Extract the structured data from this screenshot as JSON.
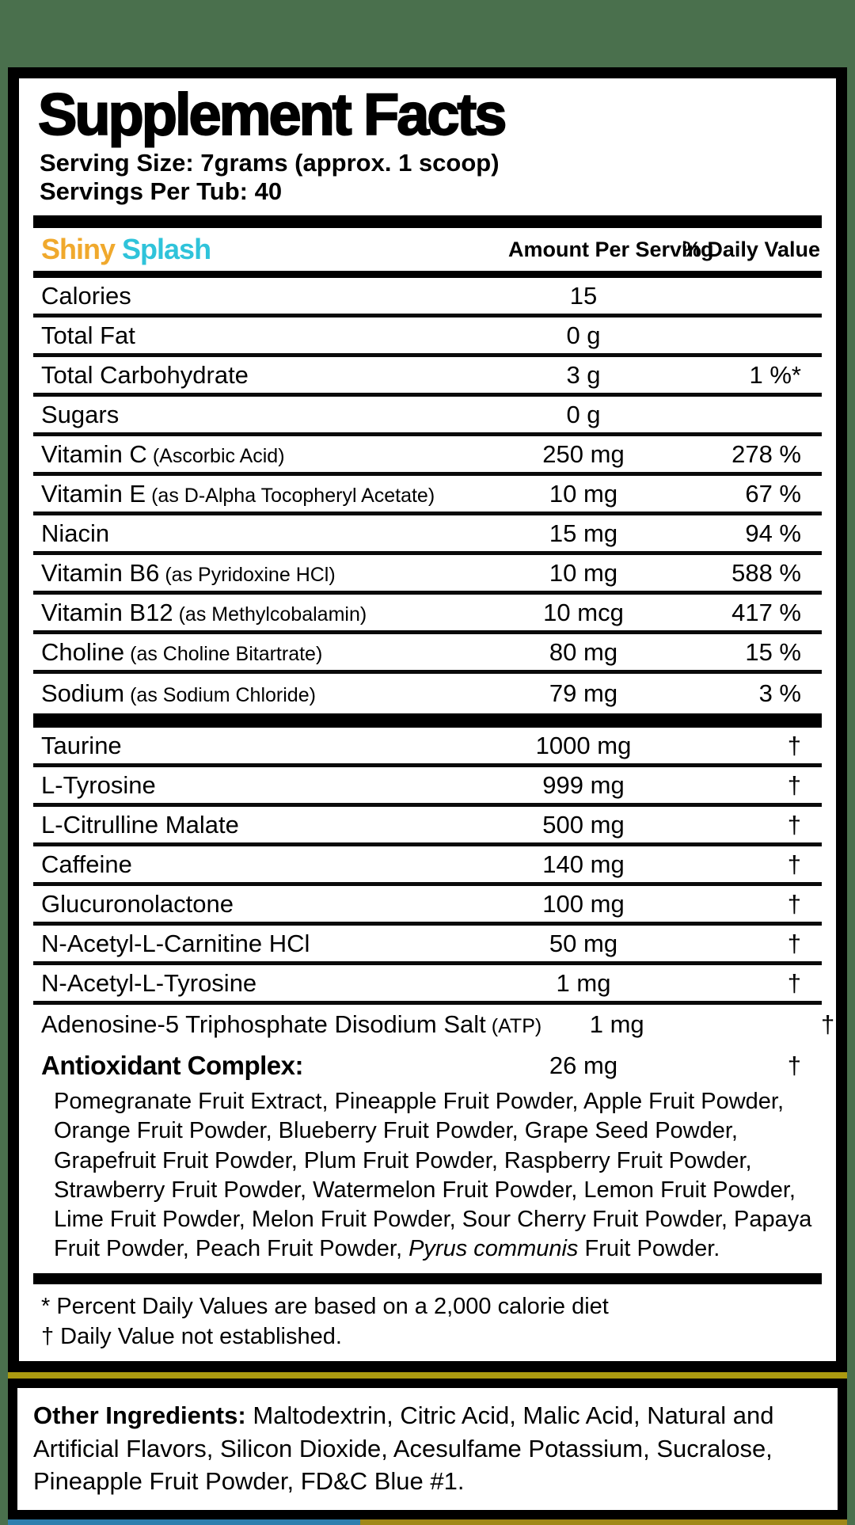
{
  "decor": {
    "page_background": "#4a704d",
    "stripe_gold": "#ab9a10",
    "stripe_blue": "#2e7fae",
    "panel_border": "#000000"
  },
  "header": {
    "title": "Supplement Facts",
    "serving_size": "Serving Size: 7grams (approx. 1 scoop)",
    "servings_per_tub": "Servings Per Tub: 40"
  },
  "columns": {
    "flavor_word1": "Shiny",
    "flavor_word2": "Splash",
    "flavor_word1_color": "#f0a92d",
    "flavor_word2_color": "#2fc3da",
    "amount_header": "Amount Per Serving",
    "daily_value_header": "% Daily Value"
  },
  "nutrient_rows": [
    {
      "label": "Calories",
      "paren": "",
      "amount": "15",
      "dv": ""
    },
    {
      "label": "Total Fat",
      "paren": "",
      "amount": "0 g",
      "dv": ""
    },
    {
      "label": "Total Carbohydrate",
      "paren": "",
      "amount": "3 g",
      "dv": "1 %*"
    },
    {
      "label": "Sugars",
      "paren": "",
      "amount": "0 g",
      "dv": ""
    },
    {
      "label": "Vitamin C",
      "paren": "(Ascorbic Acid)",
      "amount": "250 mg",
      "dv": "278 %"
    },
    {
      "label": "Vitamin E",
      "paren": "(as D-Alpha Tocopheryl Acetate)",
      "amount": "10 mg",
      "dv": "67 %"
    },
    {
      "label": "Niacin",
      "paren": "",
      "amount": "15 mg",
      "dv": "94 %"
    },
    {
      "label": "Vitamin B6",
      "paren": "(as Pyridoxine HCl)",
      "amount": "10 mg",
      "dv": "588 %"
    },
    {
      "label": "Vitamin B12",
      "paren": "(as Methylcobalamin)",
      "amount": "10 mcg",
      "dv": "417 %"
    },
    {
      "label": "Choline",
      "paren": "(as Choline Bitartrate)",
      "amount": "80 mg",
      "dv": "15 %"
    },
    {
      "label": "Sodium",
      "paren": "(as Sodium Chloride)",
      "amount": "79 mg",
      "dv": "3 %"
    }
  ],
  "active_rows": [
    {
      "label": "Taurine",
      "paren": "",
      "amount": "1000 mg",
      "dv": "†"
    },
    {
      "label": "L-Tyrosine",
      "paren": "",
      "amount": "999 mg",
      "dv": "†"
    },
    {
      "label": "L-Citrulline Malate",
      "paren": "",
      "amount": "500 mg",
      "dv": "†"
    },
    {
      "label": "Caffeine",
      "paren": "",
      "amount": "140 mg",
      "dv": "†"
    },
    {
      "label": "Glucuronolactone",
      "paren": "",
      "amount": "100 mg",
      "dv": "†"
    },
    {
      "label": "N-Acetyl-L-Carnitine HCl",
      "paren": "",
      "amount": "50 mg",
      "dv": "†"
    },
    {
      "label": "N-Acetyl-L-Tyrosine",
      "paren": "",
      "amount": "1 mg",
      "dv": "†"
    },
    {
      "label": "Adenosine-5 Triphosphate Disodium Salt",
      "paren": "(ATP)",
      "amount": "1 mg",
      "dv": "†"
    }
  ],
  "antioxidant": {
    "label": "Antioxidant Complex:",
    "amount": "26 mg",
    "dv": "†",
    "ingredients_main": "Pomegranate Fruit Extract, Pineapple Fruit Powder, Apple Fruit Powder, Orange Fruit Powder, Blueberry Fruit Powder, Grape Seed Powder, Grapefruit Fruit Powder, Plum Fruit Powder, Raspberry Fruit Powder, Strawberry Fruit Powder, Watermelon Fruit Powder, Lemon Fruit Powder, Lime Fruit Powder, Melon Fruit Powder, Sour Cherry Fruit Powder, Papaya Fruit Powder, Peach Fruit Powder, ",
    "ingredients_italic": "Pyrus communis",
    "ingredients_tail": " Fruit Powder."
  },
  "footnotes": {
    "asterisk_note": "* Percent Daily Values are based on a 2,000 calorie diet",
    "dagger_note": "† Daily Value not established."
  },
  "other_ingredients": {
    "label": "Other Ingredients:",
    "text": " Maltodextrin, Citric Acid, Malic Acid, Natural and Artificial Flavors, Silicon Dioxide, Acesulfame Potassium, Sucralose, Pineapple Fruit Powder, FD&C Blue #1."
  }
}
